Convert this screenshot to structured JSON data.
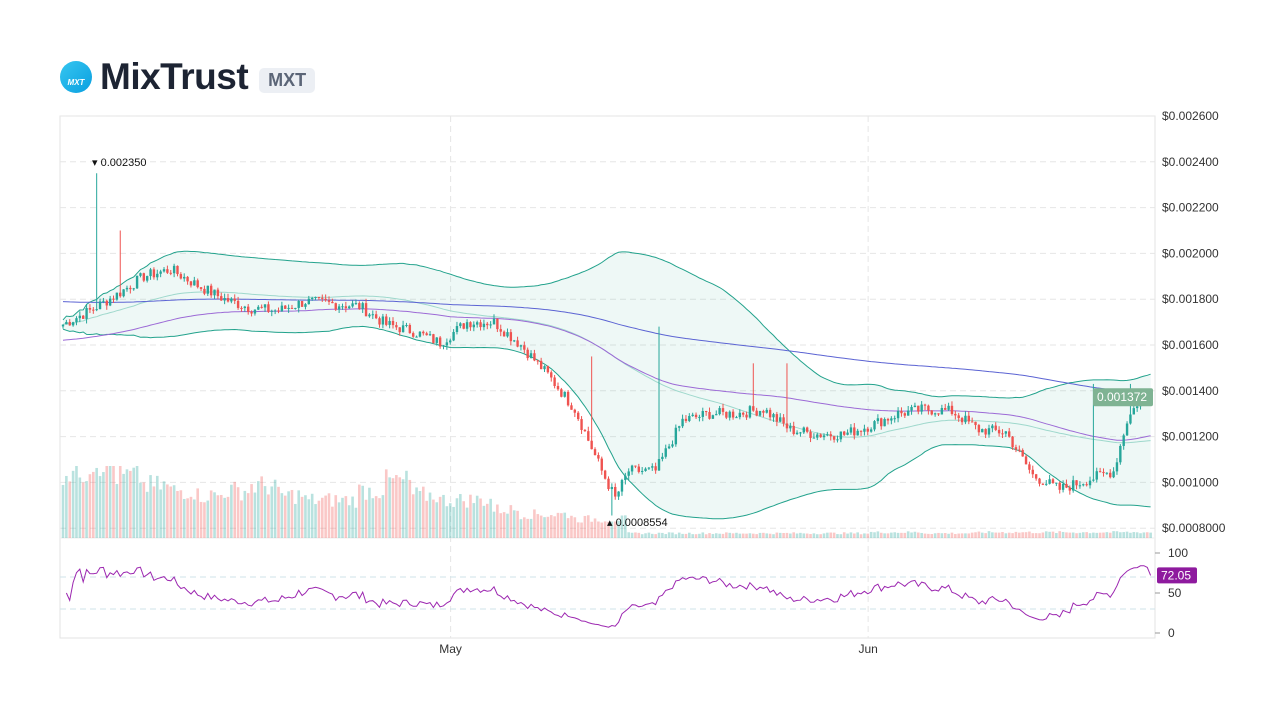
{
  "header": {
    "name": "MixTrust",
    "symbol": "MXT",
    "logo_text": "MXT"
  },
  "chart_data": {
    "type": "candlestick",
    "interval_note": "",
    "x_ticks": [
      "May",
      "Jun"
    ],
    "y_ticks": [
      "$0.002600",
      "$0.002400",
      "$0.002200",
      "$0.002000",
      "$0.001800",
      "$0.001600",
      "$0.001400",
      "$0.001200",
      "$0.001000",
      "$0.0008000"
    ],
    "ylim": [
      0.00075,
      0.0026
    ],
    "last_price": "0.001372",
    "max_label": "0.002350",
    "min_label": "0.0008554",
    "close_path": {
      "dates": [
        "Apr 2",
        "Apr 4",
        "Apr 6",
        "Apr 8",
        "Apr 10",
        "Apr 12",
        "Apr 14",
        "Apr 16",
        "Apr 18",
        "Apr 20",
        "Apr 22",
        "Apr 24",
        "Apr 26",
        "Apr 28",
        "Apr 30",
        "May 2",
        "May 4",
        "May 6",
        "May 8",
        "May 10",
        "May 12",
        "May 13",
        "May 14",
        "May 16",
        "May 18",
        "May 20",
        "May 22",
        "May 24",
        "May 26",
        "May 28",
        "May 30",
        "Jun 1",
        "Jun 3",
        "Jun 5",
        "Jun 7",
        "Jun 9",
        "Jun 11",
        "Jun 13",
        "Jun 15",
        "Jun 17",
        "Jun 19",
        "Jun 20",
        "Jun 21"
      ],
      "day": [
        0,
        2,
        4,
        6,
        8,
        10,
        12,
        14,
        16,
        18,
        20,
        22,
        24,
        26,
        28,
        30,
        32,
        34,
        36,
        38,
        40,
        41,
        42,
        44,
        46,
        48,
        50,
        52,
        54,
        56,
        58,
        60,
        62,
        64,
        66,
        68,
        70,
        72,
        74,
        76,
        78,
        79,
        80
      ],
      "close": [
        0.00169,
        0.00175,
        0.00182,
        0.0019,
        0.00193,
        0.00186,
        0.0018,
        0.00176,
        0.00175,
        0.00179,
        0.00178,
        0.00177,
        0.00169,
        0.00166,
        0.00161,
        0.0017,
        0.0017,
        0.0016,
        0.00147,
        0.00132,
        0.00105,
        0.00093,
        0.00105,
        0.00105,
        0.00127,
        0.0013,
        0.0013,
        0.00132,
        0.00123,
        0.00121,
        0.00121,
        0.00125,
        0.0013,
        0.00132,
        0.00131,
        0.00123,
        0.00122,
        0.00103,
        0.00097,
        0.00101,
        0.00105,
        0.00127,
        0.001372
      ]
    },
    "wick_spikes": [
      {
        "day": 2.4,
        "high": 0.00235
      },
      {
        "day": 4.3,
        "high": 0.0021
      },
      {
        "day": 39.2,
        "high": 0.00155
      },
      {
        "day": 44.3,
        "high": 0.00168
      },
      {
        "day": 51.2,
        "high": 0.00152
      },
      {
        "day": 53.8,
        "high": 0.00152
      },
      {
        "day": 76.5,
        "high": 0.00143
      },
      {
        "day": 79.2,
        "high": 0.00143
      },
      {
        "day": 40.8,
        "low": 0.0008554
      }
    ],
    "volume_levels": [
      70,
      80,
      65,
      55,
      50,
      45,
      50,
      55,
      45,
      40,
      40,
      50,
      60,
      45,
      40,
      40,
      30,
      25,
      25,
      20,
      20,
      5,
      5,
      5,
      5,
      5,
      5,
      5,
      5,
      5,
      6,
      6,
      5,
      5,
      6,
      6,
      6,
      6,
      6,
      6,
      6
    ],
    "rsi": {
      "ticks": [
        "100",
        "50",
        "0"
      ],
      "last": "72.05",
      "overbought": 70,
      "oversold": 30
    },
    "colors": {
      "up": "#26a69a",
      "down": "#ef5350",
      "bb": "#22a28c",
      "ma_long": "#5b63d3",
      "ma_mid": "#9c6ad6",
      "rsi": "#9c27b0",
      "last_price_bg": "#7fb393",
      "rsi_badge": "#8e1a9e"
    }
  }
}
